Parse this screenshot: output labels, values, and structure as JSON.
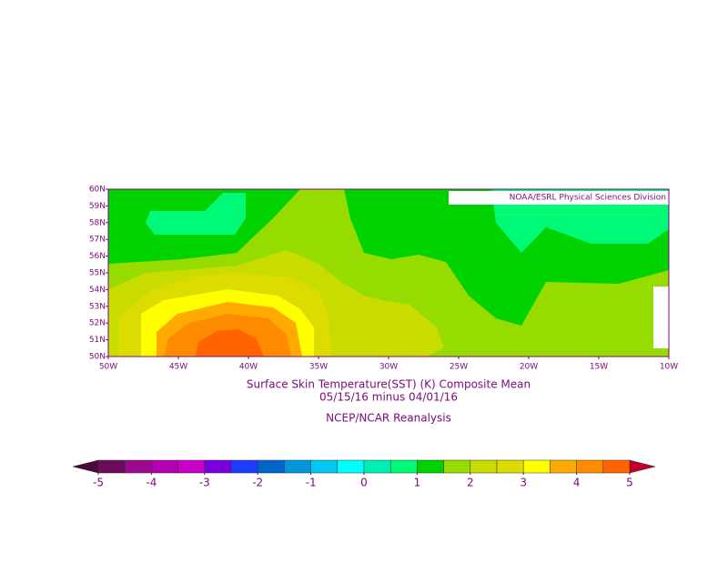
{
  "map": {
    "credit": "NOAA/ESRL Physical Sciences Division",
    "lon_labels": [
      "50W",
      "45W",
      "40W",
      "35W",
      "30W",
      "25W",
      "20W",
      "15W",
      "10W"
    ],
    "lat_labels": [
      "50N",
      "51N",
      "52N",
      "53N",
      "54N",
      "55N",
      "56N",
      "57N",
      "58N",
      "59N",
      "60N"
    ],
    "title": "Surface Skin Temperature(SST) (K) Composite Mean",
    "subtitle": "05/15/16 minus 04/01/16",
    "source": "NCEP/NCAR Reanalysis"
  },
  "colorbar": {
    "ticks": [
      -5,
      -4,
      -3,
      -2,
      -1,
      0,
      1,
      2,
      3,
      4,
      5
    ],
    "colors": [
      "#6e0a5a",
      "#9b0a8c",
      "#b400b4",
      "#c800c8",
      "#7800dc",
      "#1e3cff",
      "#0064c8",
      "#0096dc",
      "#00c8f0",
      "#00ffff",
      "#00f0b4",
      "#00fa78",
      "#00d200",
      "#96dc00",
      "#c8dc00",
      "#dcdc00",
      "#ffff00",
      "#ffaa00",
      "#ff8c00",
      "#ff6400"
    ],
    "under_color": "#4b0a3c",
    "over_color": "#c00028"
  }
}
